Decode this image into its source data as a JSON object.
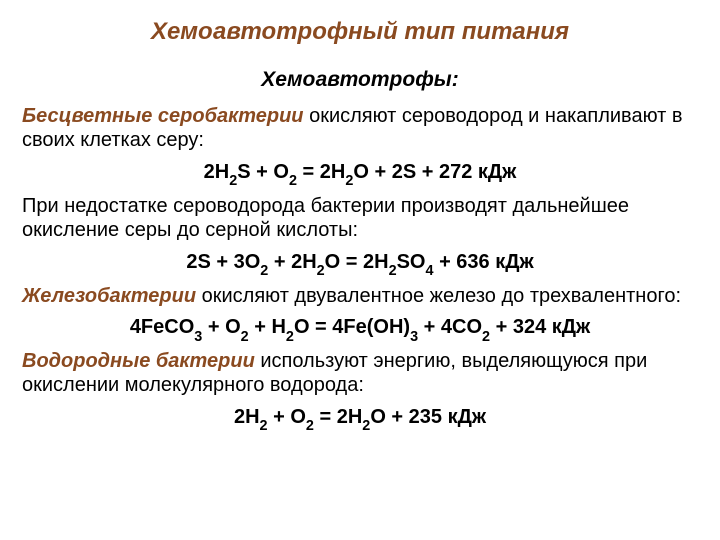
{
  "title": "Хемоавтотрофный тип питания",
  "subtitle": "Хемоавтотрофы:",
  "colors": {
    "heading": "#8a4a20",
    "text": "#000000",
    "background": "#ffffff"
  },
  "typography": {
    "title_fontsize": 24,
    "subtitle_fontsize": 21,
    "body_fontsize": 20,
    "title_style": "bold italic",
    "lead_style": "bold italic",
    "eq_style": "bold"
  },
  "sections": [
    {
      "lead": "Бесцветные серобактерии",
      "after": " окисляют сероводород и накапливают в своих клетках серу:",
      "eq_html": "2H<sub>2</sub>S + O<sub>2</sub> = 2H<sub>2</sub>O + 2S + 272 кДж"
    },
    {
      "lead": "",
      "after": "При недостатке сероводорода бактерии производят дальнейшее окисление серы до серной кислоты:",
      "eq_html": "2S + 3O<sub>2</sub> + 2H<sub>2</sub>O = 2H<sub>2</sub>SO<sub>4</sub> + 636 кДж"
    },
    {
      "lead": "Железобактерии",
      "after": " окисляют двувалентное железо до трехвалентного:",
      "eq_html": "4FeCO<sub>3</sub> + O<sub>2</sub> + H<sub>2</sub>O = 4Fe(OH)<sub>3</sub> + 4CO<sub>2</sub> + 324 кДж"
    },
    {
      "lead": "Водородные бактерии",
      "after": " используют энергию, выделяющуюся при окислении молекулярного водорода:",
      "eq_html": "2H<sub>2</sub> + O<sub>2</sub> = 2H<sub>2</sub>O + 235 кДж"
    }
  ]
}
